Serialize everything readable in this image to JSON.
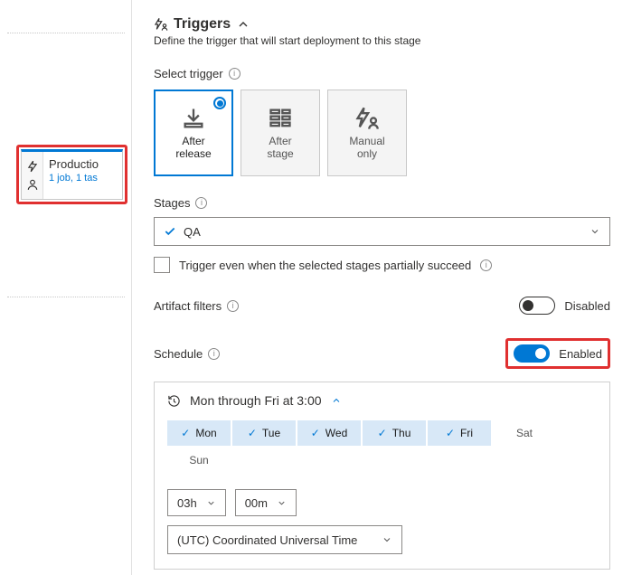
{
  "colors": {
    "accent": "#0078d4",
    "highlight_border": "#e03030",
    "text": "#323130",
    "muted": "#555555",
    "day_selected_bg": "#d8e8f7"
  },
  "stage_card": {
    "title": "Productio",
    "subtitle": "1 job, 1 tas"
  },
  "panel": {
    "title": "Triggers",
    "subtitle": "Define the trigger that will start deployment to this stage"
  },
  "select_trigger": {
    "label": "Select trigger",
    "options": [
      {
        "id": "after-release",
        "label_line1": "After",
        "label_line2": "release",
        "selected": true
      },
      {
        "id": "after-stage",
        "label_line1": "After",
        "label_line2": "stage",
        "selected": false
      },
      {
        "id": "manual-only",
        "label_line1": "Manual",
        "label_line2": "only",
        "selected": false
      }
    ]
  },
  "stages": {
    "label": "Stages",
    "selected": "QA",
    "partial_checkbox_label": "Trigger even when the selected stages partially succeed",
    "partial_checked": false
  },
  "artifact_filters": {
    "label": "Artifact filters",
    "enabled": false,
    "toggle_label": "Disabled"
  },
  "schedule": {
    "label": "Schedule",
    "enabled": true,
    "toggle_label": "Enabled",
    "summary": "Mon through Fri at 3:00",
    "days": [
      {
        "abbr": "Mon",
        "selected": true
      },
      {
        "abbr": "Tue",
        "selected": true
      },
      {
        "abbr": "Wed",
        "selected": true
      },
      {
        "abbr": "Thu",
        "selected": true
      },
      {
        "abbr": "Fri",
        "selected": true
      },
      {
        "abbr": "Sat",
        "selected": false
      },
      {
        "abbr": "Sun",
        "selected": false
      }
    ],
    "hour": "03h",
    "minute": "00m",
    "timezone": "(UTC) Coordinated Universal Time"
  }
}
